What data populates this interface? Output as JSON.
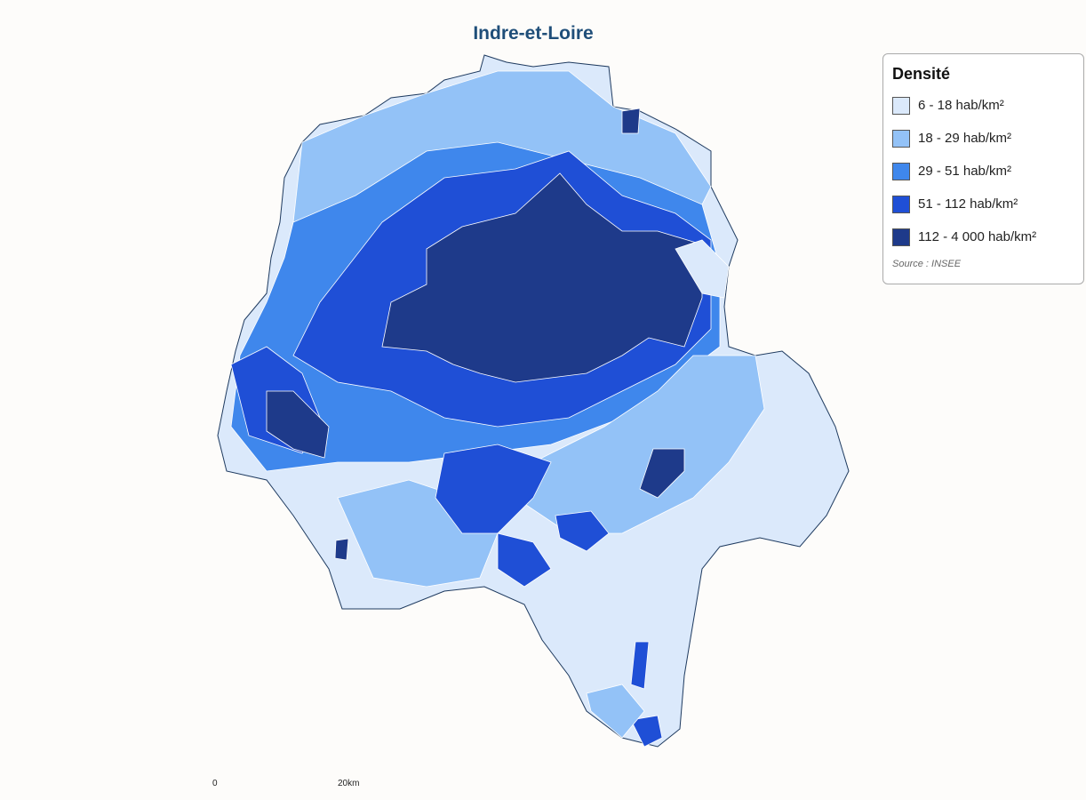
{
  "title": "Indre-et-Loire",
  "legend": {
    "title": "Densité",
    "items": [
      {
        "label": "6 - 18 hab/km²",
        "color": "#dbe9fb"
      },
      {
        "label": "18 - 29 hab/km²",
        "color": "#93c2f7"
      },
      {
        "label": "29 - 51 hab/km²",
        "color": "#3f87ec"
      },
      {
        "label": "51 - 112 hab/km²",
        "color": "#1f4fd6"
      },
      {
        "label": "112 - 4 000 hab/km²",
        "color": "#1e3a8a"
      }
    ]
  },
  "source": "Source : INSEE",
  "scale": {
    "start": "0",
    "end": "20km"
  }
}
